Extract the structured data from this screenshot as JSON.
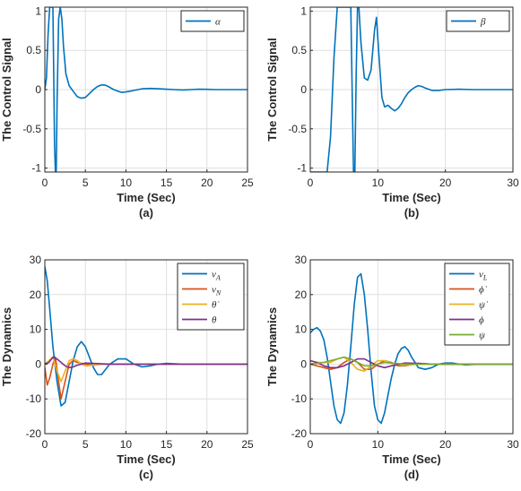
{
  "chart_data": [
    {
      "type": "line",
      "caption": "(a)",
      "xlabel": "Time (Sec)",
      "ylabel": "The Control Signal",
      "xlim": [
        0,
        25
      ],
      "ylim": [
        -1.05,
        1.05
      ],
      "xticks": [
        0,
        5,
        10,
        15,
        20,
        25
      ],
      "yticks": [
        -1,
        -0.5,
        0,
        0.5,
        1
      ],
      "grid": true,
      "legend_position": "top-right",
      "series": [
        {
          "name": "α",
          "color": "#0072BD",
          "x": [
            0,
            0.2,
            0.4,
            0.6,
            0.8,
            1.0,
            1.1,
            1.2,
            1.3,
            1.4,
            1.5,
            1.7,
            1.9,
            2.1,
            2.3,
            2.6,
            3.0,
            3.5,
            4.0,
            4.5,
            5.0,
            5.5,
            6.0,
            6.5,
            7.0,
            7.5,
            8.0,
            8.5,
            9.0,
            9.5,
            10,
            10.5,
            11,
            12,
            13,
            14,
            15,
            16,
            17,
            18,
            19,
            20,
            21,
            22,
            23,
            24,
            25
          ],
          "y": [
            0,
            0.15,
            0.7,
            1.05,
            1.05,
            1.05,
            0.2,
            -0.7,
            -1.05,
            -1.05,
            -0.2,
            0.9,
            1.05,
            0.9,
            0.55,
            0.2,
            0.05,
            -0.02,
            -0.09,
            -0.11,
            -0.1,
            -0.05,
            0.0,
            0.04,
            0.06,
            0.055,
            0.03,
            0.0,
            -0.02,
            -0.035,
            -0.03,
            -0.02,
            -0.01,
            0.01,
            0.015,
            0.01,
            0.005,
            0.0,
            -0.005,
            0.0,
            0.005,
            0.003,
            0.0,
            0.0,
            0.0,
            0.0,
            0.0
          ]
        }
      ]
    },
    {
      "type": "line",
      "caption": "(b)",
      "xlabel": "Time (Sec)",
      "ylabel": "The Control Signal",
      "xlim": [
        0,
        30
      ],
      "ylim": [
        -1.05,
        1.05
      ],
      "xticks": [
        0,
        10,
        20,
        30
      ],
      "yticks": [
        -1,
        -0.5,
        0,
        0.5,
        1
      ],
      "grid": true,
      "legend_position": "top-right",
      "series": [
        {
          "name": "β",
          "color": "#0072BD",
          "x": [
            0,
            1,
            2,
            2.5,
            3,
            3.5,
            4,
            4.5,
            5,
            5.5,
            6,
            6.2,
            6.4,
            6.6,
            6.8,
            7.0,
            7.2,
            7.5,
            8.0,
            8.5,
            9.0,
            9.5,
            9.8,
            10.2,
            10.6,
            11.0,
            11.5,
            12.0,
            12.5,
            13.0,
            13.5,
            14.0,
            14.5,
            15.0,
            15.5,
            16.0,
            16.5,
            17.0,
            18.0,
            19.0,
            20.0,
            22.0,
            24.0,
            26.0,
            28.0,
            30.0
          ],
          "y": [
            -1.05,
            -1.05,
            -1.05,
            -1.05,
            -0.6,
            0.4,
            1.05,
            1.05,
            1.05,
            1.05,
            1.05,
            0.0,
            -1.05,
            -1.05,
            0.2,
            1.05,
            1.05,
            0.6,
            0.15,
            0.12,
            0.25,
            0.75,
            0.92,
            0.4,
            -0.1,
            -0.22,
            -0.2,
            -0.24,
            -0.27,
            -0.24,
            -0.18,
            -0.1,
            -0.04,
            0.0,
            0.03,
            0.05,
            0.04,
            0.02,
            -0.01,
            -0.01,
            0.0,
            0.005,
            0.0,
            0.0,
            0.0,
            0.0
          ]
        }
      ]
    },
    {
      "type": "line",
      "caption": "(c)",
      "xlabel": "Time (Sec)",
      "ylabel": "The Dynamics",
      "xlim": [
        0,
        25
      ],
      "ylim": [
        -20,
        30
      ],
      "xticks": [
        0,
        5,
        10,
        15,
        20,
        25
      ],
      "yticks": [
        -20,
        -10,
        0,
        10,
        20,
        30
      ],
      "grid": true,
      "legend_position": "top-right",
      "series": [
        {
          "name": "ν_A",
          "color": "#0072BD",
          "x": [
            0,
            0.3,
            0.6,
            1.0,
            1.5,
            2.0,
            2.5,
            3.0,
            3.5,
            4.0,
            4.5,
            5.0,
            5.5,
            6.0,
            6.5,
            7.0,
            7.5,
            8.0,
            9.0,
            10.0,
            11.0,
            12.0,
            13.0,
            14.0,
            15.0,
            17.0,
            20.0,
            25.0
          ],
          "y": [
            28,
            24,
            16,
            5,
            -5,
            -12,
            -11,
            -5,
            1,
            5,
            6.5,
            5,
            2,
            -1,
            -3,
            -3,
            -1.5,
            0,
            1.5,
            1.5,
            0,
            -0.8,
            -0.5,
            0,
            0.2,
            0,
            0,
            0
          ]
        },
        {
          "name": "ν_N",
          "color": "#D95319",
          "x": [
            0,
            0.3,
            0.6,
            1.0,
            1.3,
            1.7,
            2.0,
            2.5,
            3.0,
            3.5,
            4.0,
            5.0,
            6.0,
            7.0,
            8.0,
            10.0,
            12.0,
            15.0,
            20.0,
            25.0
          ],
          "y": [
            -1,
            -6,
            -4,
            0,
            2,
            -5,
            -10,
            -5,
            0,
            1,
            0.5,
            0,
            -0.3,
            0,
            0,
            0,
            0,
            0,
            0,
            0
          ]
        },
        {
          "name": "θ̇",
          "color": "#EDB120",
          "x": [
            0,
            0.5,
            1.0,
            1.5,
            2.0,
            2.5,
            3.0,
            3.5,
            4.0,
            4.5,
            5.0,
            6.0,
            7.0,
            8.0,
            10.0,
            15.0,
            20.0,
            25.0
          ],
          "y": [
            0,
            1,
            2,
            -2,
            -5,
            -2,
            1,
            1.5,
            1,
            0,
            -0.5,
            -0.3,
            0,
            0,
            0,
            0,
            0,
            0
          ]
        },
        {
          "name": "θ",
          "color": "#7E2F8E",
          "x": [
            0,
            0.5,
            1.0,
            1.5,
            2.0,
            2.5,
            3.0,
            3.5,
            4.0,
            5.0,
            6.0,
            8.0,
            10.0,
            15.0,
            20.0,
            25.0
          ],
          "y": [
            0,
            0.5,
            2,
            1.5,
            0.5,
            -0.5,
            -1,
            -0.8,
            -0.3,
            0.3,
            0.2,
            0,
            0,
            0,
            0,
            0
          ]
        }
      ]
    },
    {
      "type": "line",
      "caption": "(d)",
      "xlabel": "Time (Sec)",
      "ylabel": "The Dynamics",
      "xlim": [
        0,
        30
      ],
      "ylim": [
        -20,
        30
      ],
      "xticks": [
        0,
        10,
        20,
        30
      ],
      "yticks": [
        -20,
        -10,
        0,
        10,
        20,
        30
      ],
      "grid": true,
      "legend_position": "top-right",
      "series": [
        {
          "name": "ν_L",
          "color": "#0072BD",
          "x": [
            0,
            0.5,
            1.0,
            1.5,
            2.0,
            2.5,
            3.0,
            3.5,
            4.0,
            4.5,
            5.0,
            5.5,
            6.0,
            6.5,
            7.0,
            7.5,
            8.0,
            8.5,
            9.0,
            9.5,
            10.0,
            10.5,
            11.0,
            11.5,
            12.0,
            12.5,
            13.0,
            13.5,
            14.0,
            14.5,
            15.0,
            16.0,
            17.0,
            18.0,
            19.0,
            20.0,
            21.0,
            22.0,
            23.0,
            25.0,
            27.0,
            30.0
          ],
          "y": [
            9,
            10,
            10.5,
            9.5,
            7,
            2,
            -5,
            -12,
            -16,
            -17,
            -14,
            -6,
            5,
            17,
            25,
            26,
            20,
            10,
            -2,
            -12,
            -16,
            -17,
            -14,
            -9,
            -4,
            0,
            3,
            4.5,
            5,
            4,
            2,
            -1,
            -1.5,
            -1,
            0,
            0.3,
            0.3,
            0,
            -0.2,
            0,
            0,
            0
          ]
        },
        {
          "name": "ϕ̇",
          "color": "#D95319",
          "x": [
            0,
            1,
            2,
            3,
            4,
            5,
            6,
            7,
            8,
            9,
            10,
            11,
            12,
            13,
            14,
            16,
            18,
            20,
            25,
            30
          ],
          "y": [
            0,
            -0.5,
            -1,
            -1.5,
            -1,
            0.5,
            1.5,
            0.5,
            -1.5,
            -1.5,
            0,
            1,
            0.5,
            -0.5,
            -0.5,
            0.2,
            0,
            0,
            0,
            0
          ]
        },
        {
          "name": "ψ̇",
          "color": "#EDB120",
          "x": [
            0,
            1,
            2,
            3,
            4,
            5,
            6,
            7,
            8,
            9,
            10,
            11,
            12,
            13,
            14,
            16,
            18,
            20,
            25,
            30
          ],
          "y": [
            0,
            0.5,
            0.5,
            0.5,
            1.5,
            2,
            0.5,
            -1.5,
            -2,
            -0.5,
            1,
            1,
            0.3,
            -0.2,
            -0.3,
            0,
            0,
            0,
            0,
            0
          ]
        },
        {
          "name": "ϕ",
          "color": "#7E2F8E",
          "x": [
            0,
            1,
            2,
            3,
            4,
            5,
            6,
            7,
            8,
            9,
            10,
            11,
            12,
            14,
            16,
            18,
            20,
            25,
            30
          ],
          "y": [
            1,
            0.5,
            -0.5,
            -1,
            -1,
            -0.5,
            0.5,
            1.5,
            1.5,
            0.5,
            -0.5,
            -1,
            -0.5,
            0.3,
            0.2,
            0,
            0,
            0,
            0
          ]
        },
        {
          "name": "ψ",
          "color": "#77AC30",
          "x": [
            0,
            1,
            2,
            3,
            4,
            5,
            6,
            7,
            8,
            9,
            10,
            11,
            12,
            14,
            16,
            18,
            20,
            25,
            30
          ],
          "y": [
            0,
            0.2,
            0.5,
            1,
            1.5,
            2,
            1.5,
            0.5,
            -0.5,
            -0.5,
            0,
            0.5,
            0.3,
            0,
            0,
            0,
            0,
            0,
            0
          ]
        }
      ]
    }
  ]
}
